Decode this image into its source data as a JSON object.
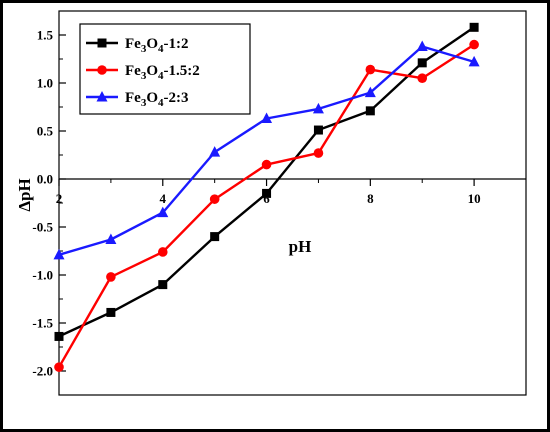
{
  "chart_data": {
    "type": "line",
    "title": "",
    "xlabel": "pH",
    "ylabel": "ΔpH",
    "x": [
      2,
      3,
      4,
      5,
      6,
      7,
      8,
      9,
      10
    ],
    "xlim": [
      2,
      11
    ],
    "ylim": [
      -2.25,
      1.75
    ],
    "x_ticks": [
      2,
      4,
      6,
      8,
      10
    ],
    "y_ticks": [
      -2.0,
      -1.5,
      -1.0,
      -0.5,
      0.0,
      0.5,
      1.0,
      1.5
    ],
    "grid": false,
    "legend_position": "top-left",
    "series": [
      {
        "name": "Fe3O4-1:2",
        "name_base": "Fe",
        "name_sub1": "3",
        "name_mid": "O",
        "name_sub2": "4",
        "name_tail": "-1:2",
        "color": "#000000",
        "marker": "square",
        "values": [
          -1.64,
          -1.39,
          -1.1,
          -0.6,
          -0.15,
          0.51,
          0.71,
          1.21,
          1.58
        ]
      },
      {
        "name": "Fe3O4-1.5:2",
        "name_base": "Fe",
        "name_sub1": "3",
        "name_mid": "O",
        "name_sub2": "4",
        "name_tail": "-1.5:2",
        "color": "#ff0000",
        "marker": "circle",
        "values": [
          -1.96,
          -1.02,
          -0.76,
          -0.21,
          0.15,
          0.27,
          1.14,
          1.05,
          1.4
        ]
      },
      {
        "name": "Fe3O4-2:3",
        "name_base": "Fe",
        "name_sub1": "3",
        "name_mid": "O",
        "name_sub2": "4",
        "name_tail": "-2:3",
        "color": "#1a1aff",
        "marker": "triangle",
        "values": [
          -0.79,
          -0.63,
          -0.35,
          0.28,
          0.63,
          0.73,
          0.9,
          1.38,
          1.22
        ]
      }
    ]
  }
}
